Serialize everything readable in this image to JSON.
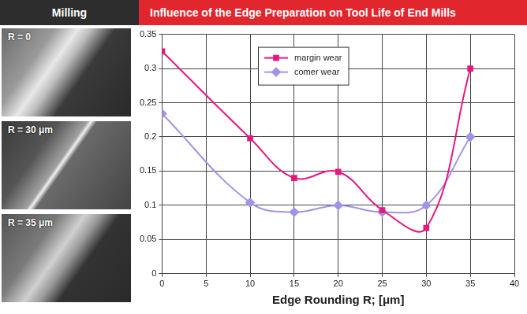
{
  "header": {
    "section": "Milling",
    "title": "Influence of the Edge Preparation on Tool Life of End Mills"
  },
  "photos": [
    {
      "label": "R = 0"
    },
    {
      "label": "R = 30 μm"
    },
    {
      "label": "R = 35 μm"
    }
  ],
  "chart_data": {
    "type": "line",
    "x_label": "Edge Rounding R; [μm]",
    "x": [
      0,
      10,
      15,
      20,
      25,
      30,
      35
    ],
    "series": [
      {
        "name": "margin wear",
        "color": "#e6177f",
        "marker": "square",
        "line_style": "solid",
        "values": [
          0.325,
          0.198,
          0.14,
          0.149,
          0.093,
          0.067,
          0.3
        ]
      },
      {
        "name": "comer wear",
        "color": "#a393e6",
        "marker": "diamond",
        "line_style": "solid",
        "values": [
          0.234,
          0.104,
          0.09,
          0.1,
          0.09,
          0.1,
          0.2
        ]
      }
    ],
    "xlim": [
      0,
      40
    ],
    "xticks": [
      0,
      5,
      10,
      15,
      20,
      25,
      30,
      35,
      40
    ],
    "ylim": [
      0,
      0.35
    ],
    "yticks": [
      0,
      0.05,
      0.1,
      0.15,
      0.2,
      0.25,
      0.3,
      0.35
    ],
    "grid": true,
    "legend": "top"
  }
}
